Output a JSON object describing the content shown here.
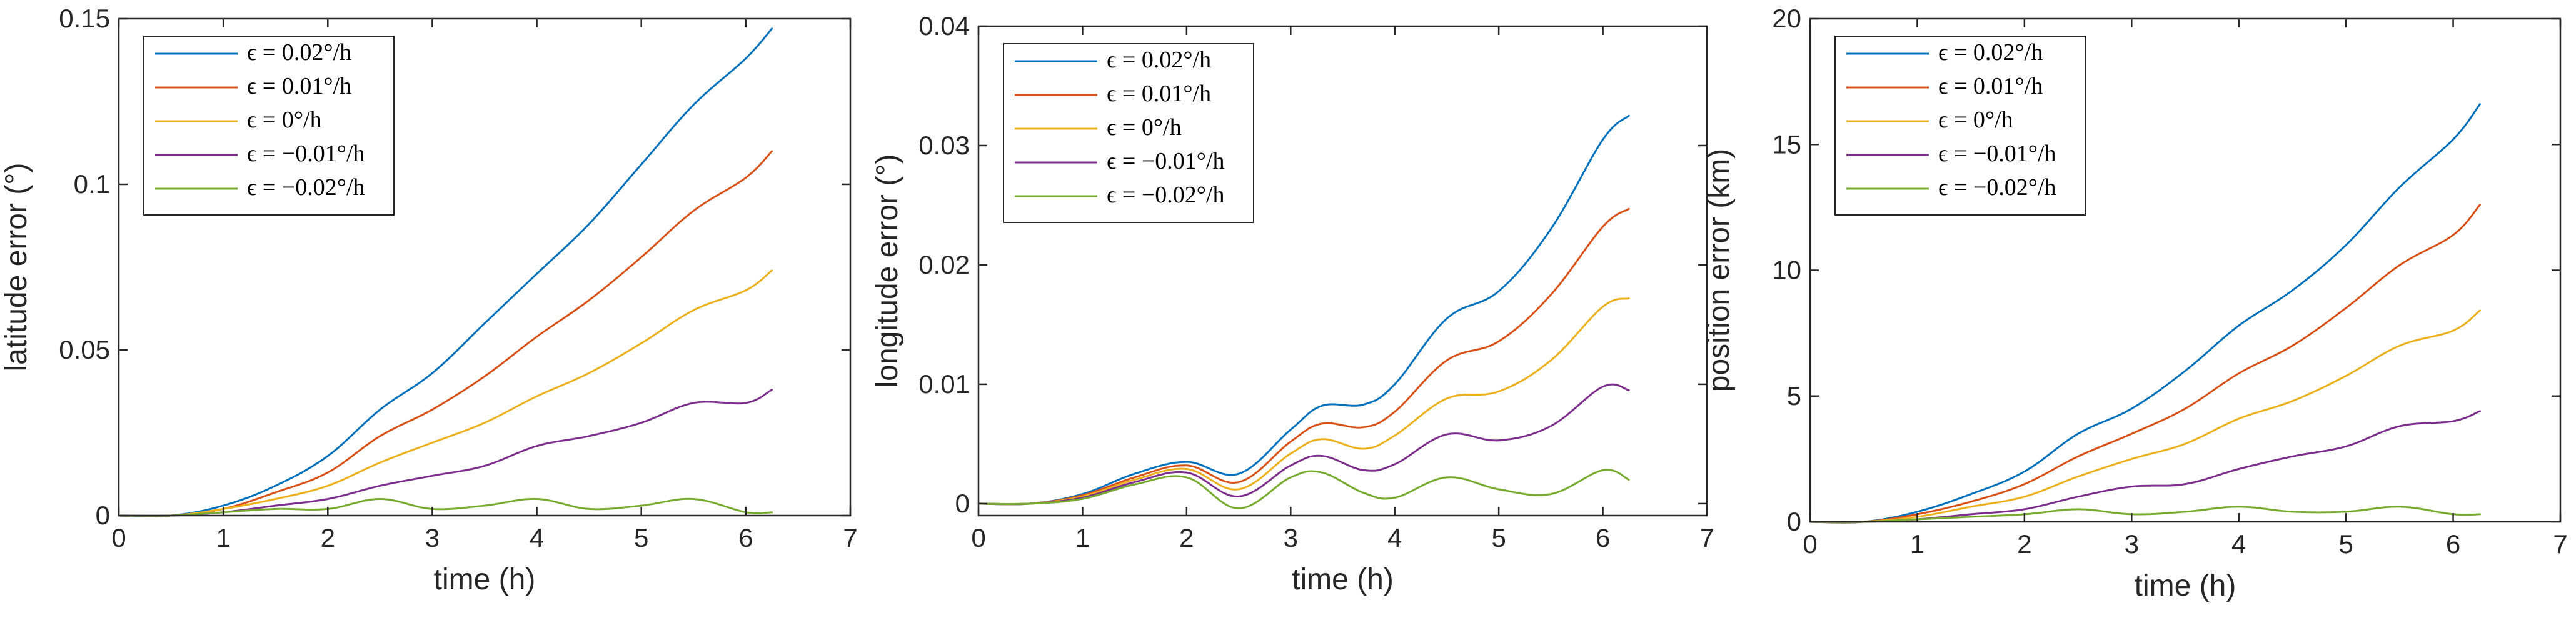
{
  "chart_data": [
    {
      "type": "line",
      "title": "",
      "xlabel": "time (h)",
      "ylabel": "latitude error (°)",
      "xlim": [
        0,
        7
      ],
      "ylim": [
        0,
        0.15
      ],
      "xticks": [
        "0",
        "1",
        "2",
        "3",
        "4",
        "5",
        "6",
        "7"
      ],
      "yticks": [
        "0",
        "0.05",
        "0.1",
        "0.15"
      ],
      "legend_position": "top-left",
      "x": [
        0,
        0.5,
        1.0,
        1.5,
        2.0,
        2.5,
        3.0,
        3.5,
        4.0,
        4.5,
        5.0,
        5.5,
        6.0,
        6.25
      ],
      "series": [
        {
          "name": "ϵ = 0.02°/h",
          "color": "#0072BD",
          "values": [
            0,
            0,
            0.003,
            0.009,
            0.018,
            0.032,
            0.043,
            0.058,
            0.073,
            0.088,
            0.106,
            0.124,
            0.138,
            0.147
          ]
        },
        {
          "name": "ϵ = 0.01°/h",
          "color": "#D95319",
          "values": [
            0,
            0,
            0.002,
            0.007,
            0.013,
            0.024,
            0.032,
            0.042,
            0.054,
            0.065,
            0.078,
            0.092,
            0.102,
            0.11
          ]
        },
        {
          "name": "ϵ = 0°/h",
          "color": "#EDB120",
          "values": [
            0,
            0,
            0.002,
            0.005,
            0.009,
            0.016,
            0.022,
            0.028,
            0.036,
            0.043,
            0.052,
            0.062,
            0.068,
            0.074
          ]
        },
        {
          "name": "ϵ = −0.01°/h",
          "color": "#7E2F8E",
          "values": [
            0,
            0,
            0.001,
            0.003,
            0.005,
            0.009,
            0.012,
            0.015,
            0.021,
            0.024,
            0.028,
            0.034,
            0.034,
            0.038
          ]
        },
        {
          "name": "ϵ = −0.02°/h",
          "color": "#77AC30",
          "values": [
            0,
            0,
            0.001,
            0.002,
            0.002,
            0.005,
            0.002,
            0.003,
            0.005,
            0.002,
            0.003,
            0.005,
            0.001,
            0.001
          ]
        }
      ]
    },
    {
      "type": "line",
      "title": "",
      "xlabel": "time (h)",
      "ylabel": "longitude error (°)",
      "xlim": [
        0,
        7
      ],
      "ylim": [
        -0.001,
        0.04
      ],
      "xticks": [
        "0",
        "1",
        "2",
        "3",
        "4",
        "5",
        "6",
        "7"
      ],
      "yticks": [
        "0",
        "0.01",
        "0.02",
        "0.03",
        "0.04"
      ],
      "legend_position": "top-left",
      "x": [
        0,
        0.5,
        1.0,
        1.5,
        2.0,
        2.5,
        3.0,
        3.3,
        3.7,
        4.0,
        4.5,
        5.0,
        5.5,
        6.0,
        6.25
      ],
      "series": [
        {
          "name": "ϵ = 0.02°/h",
          "color": "#0072BD",
          "values": [
            0,
            0,
            0.0008,
            0.0025,
            0.0035,
            0.0025,
            0.0062,
            0.0082,
            0.0083,
            0.01,
            0.0155,
            0.0178,
            0.023,
            0.0305,
            0.0325
          ]
        },
        {
          "name": "ϵ = 0.01°/h",
          "color": "#D95319",
          "values": [
            0,
            0,
            0.0007,
            0.0022,
            0.0032,
            0.0018,
            0.0052,
            0.0067,
            0.0064,
            0.0077,
            0.012,
            0.0136,
            0.0175,
            0.0232,
            0.0247
          ]
        },
        {
          "name": "ϵ = 0°/h",
          "color": "#EDB120",
          "values": [
            0,
            0,
            0.0006,
            0.002,
            0.0029,
            0.0012,
            0.0042,
            0.0054,
            0.0046,
            0.0057,
            0.0088,
            0.0094,
            0.012,
            0.0165,
            0.0172
          ]
        },
        {
          "name": "ϵ = −0.01°/h",
          "color": "#7E2F8E",
          "values": [
            0,
            0,
            0.0005,
            0.0018,
            0.0026,
            0.0006,
            0.0032,
            0.004,
            0.0028,
            0.0033,
            0.0058,
            0.0053,
            0.0065,
            0.0098,
            0.0095
          ]
        },
        {
          "name": "ϵ = −0.02°/h",
          "color": "#77AC30",
          "values": [
            0,
            0,
            0.0004,
            0.0016,
            0.0022,
            -0.0004,
            0.0022,
            0.0026,
            0.0009,
            0.0005,
            0.0022,
            0.0012,
            0.0008,
            0.0028,
            0.002
          ]
        }
      ]
    },
    {
      "type": "line",
      "title": "",
      "xlabel": "time (h)",
      "ylabel": "position error (km)",
      "xlim": [
        0,
        7
      ],
      "ylim": [
        0,
        20
      ],
      "xticks": [
        "0",
        "1",
        "2",
        "3",
        "4",
        "5",
        "6",
        "7"
      ],
      "yticks": [
        "0",
        "5",
        "10",
        "15",
        "20"
      ],
      "legend_position": "top-left",
      "x": [
        0,
        0.5,
        1.0,
        1.5,
        2.0,
        2.5,
        3.0,
        3.5,
        4.0,
        4.5,
        5.0,
        5.5,
        6.0,
        6.25
      ],
      "series": [
        {
          "name": "ϵ = 0.02°/h",
          "color": "#0072BD",
          "values": [
            0,
            0,
            0.4,
            1.1,
            2.0,
            3.5,
            4.5,
            6.0,
            7.8,
            9.2,
            11.0,
            13.3,
            15.2,
            16.6
          ]
        },
        {
          "name": "ϵ = 0.01°/h",
          "color": "#D95319",
          "values": [
            0,
            0,
            0.3,
            0.8,
            1.5,
            2.6,
            3.5,
            4.5,
            5.9,
            7.0,
            8.5,
            10.2,
            11.4,
            12.6
          ]
        },
        {
          "name": "ϵ = 0°/h",
          "color": "#EDB120",
          "values": [
            0,
            0,
            0.2,
            0.6,
            1.0,
            1.8,
            2.5,
            3.1,
            4.1,
            4.8,
            5.8,
            7.0,
            7.6,
            8.4
          ]
        },
        {
          "name": "ϵ = −0.01°/h",
          "color": "#7E2F8E",
          "values": [
            0,
            0,
            0.1,
            0.3,
            0.5,
            1.0,
            1.4,
            1.5,
            2.1,
            2.6,
            3.0,
            3.8,
            4.0,
            4.4
          ]
        },
        {
          "name": "ϵ = −0.02°/h",
          "color": "#77AC30",
          "values": [
            0,
            0,
            0.1,
            0.2,
            0.3,
            0.5,
            0.3,
            0.4,
            0.6,
            0.4,
            0.4,
            0.6,
            0.3,
            0.3
          ]
        }
      ]
    }
  ]
}
